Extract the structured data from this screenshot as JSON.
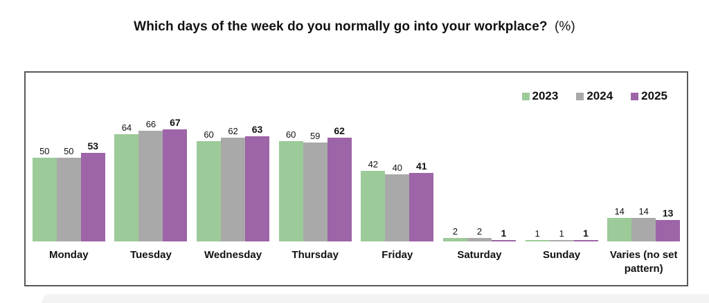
{
  "header": {
    "title_main": "Which days of the week do you normally go into your workplace?",
    "title_suffix": "(%)"
  },
  "chart_data": {
    "type": "bar",
    "title": "Which days of the week do you normally go into your workplace? (%)",
    "categories": [
      "Monday",
      "Tuesday",
      "Wednesday",
      "Thursday",
      "Friday",
      "Saturday",
      "Sunday",
      "Varies (no set pattern)"
    ],
    "series": [
      {
        "name": "2023",
        "color": "#9cca99",
        "values": [
          50,
          64,
          60,
          60,
          42,
          2,
          1,
          14
        ],
        "emphasis": false
      },
      {
        "name": "2024",
        "color": "#a9a9a9",
        "values": [
          50,
          66,
          62,
          59,
          40,
          2,
          1,
          14
        ],
        "emphasis": false
      },
      {
        "name": "2025",
        "color": "#9d64a7",
        "values": [
          53,
          67,
          63,
          62,
          41,
          1,
          1,
          13
        ],
        "emphasis": true
      }
    ],
    "ylim": [
      0,
      70
    ],
    "grid": false,
    "legend_position": "top-right",
    "value_labels": true,
    "frame_color": "#58585a"
  }
}
